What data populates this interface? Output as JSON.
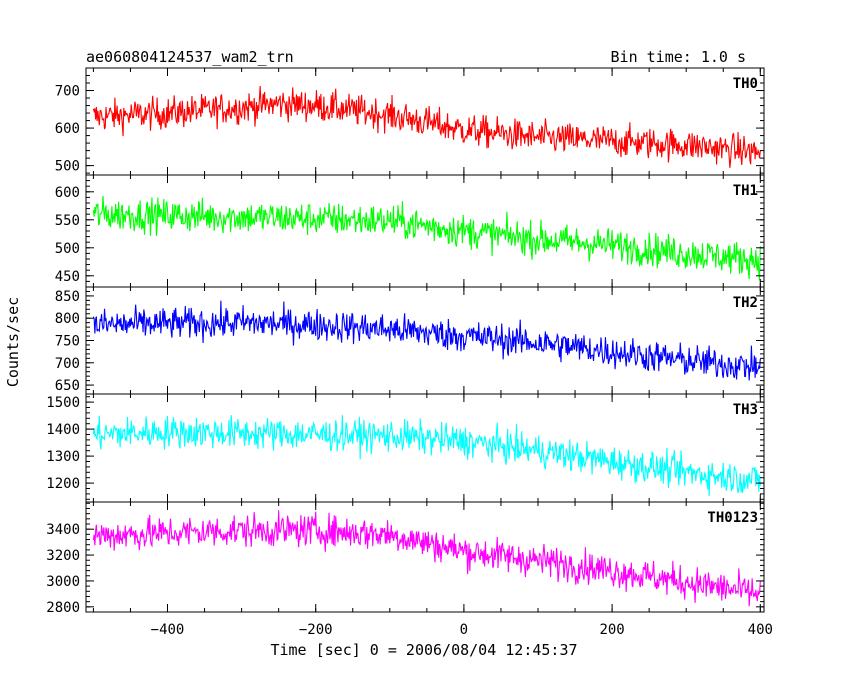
{
  "chart_data": {
    "type": "line",
    "title": "ae060804124537_wam2_trn",
    "subtitle": "Bin time: 1.0 s",
    "xlabel": "Time [sec] 0 = 2006/08/04 12:45:37",
    "ylabel": "Counts/sec",
    "xlim": [
      -510,
      405
    ],
    "x_ticks": [
      -400,
      -200,
      0,
      200,
      400
    ],
    "x_tick_labels": [
      "−400",
      "−200",
      "0",
      "200",
      "400"
    ],
    "bin_time_s": 1.0,
    "legend": "none",
    "grid": false,
    "panels": [
      {
        "name": "TH0",
        "color": "#ff0000",
        "ylim": [
          475,
          760
        ],
        "y_ticks": [
          500,
          600,
          700
        ],
        "series": {
          "name": "TH0",
          "x": [
            -500,
            -400,
            -300,
            -250,
            -200,
            -100,
            0,
            100,
            200,
            300,
            400
          ],
          "values": [
            630,
            640,
            655,
            665,
            660,
            635,
            595,
            575,
            565,
            555,
            535
          ]
        }
      },
      {
        "name": "TH1",
        "color": "#00ff00",
        "ylim": [
          430,
          630
        ],
        "y_ticks": [
          450,
          500,
          550,
          600
        ],
        "series": {
          "name": "TH1",
          "x": [
            -500,
            -400,
            -300,
            -200,
            -100,
            0,
            100,
            200,
            300,
            400
          ],
          "values": [
            560,
            558,
            555,
            552,
            548,
            530,
            515,
            505,
            490,
            478
          ]
        }
      },
      {
        "name": "TH2",
        "color": "#0000ff",
        "ylim": [
          630,
          870
        ],
        "y_ticks": [
          650,
          700,
          750,
          800,
          850
        ],
        "series": {
          "name": "TH2",
          "x": [
            -500,
            -400,
            -300,
            -200,
            -100,
            0,
            100,
            200,
            300,
            400
          ],
          "values": [
            785,
            788,
            790,
            785,
            775,
            760,
            745,
            725,
            705,
            690
          ]
        }
      },
      {
        "name": "TH3",
        "color": "#00ffff",
        "ylim": [
          1130,
          1530
        ],
        "y_ticks": [
          1200,
          1300,
          1400,
          1500
        ],
        "series": {
          "name": "TH3",
          "x": [
            -500,
            -400,
            -300,
            -200,
            -100,
            0,
            100,
            200,
            300,
            400
          ],
          "values": [
            1380,
            1390,
            1385,
            1380,
            1375,
            1355,
            1320,
            1280,
            1240,
            1210
          ]
        }
      },
      {
        "name": "TH0123",
        "color": "#ff00ff",
        "ylim": [
          2760,
          3610
        ],
        "y_ticks": [
          2800,
          3000,
          3200,
          3400
        ],
        "series": {
          "name": "TH0123",
          "x": [
            -500,
            -400,
            -300,
            -200,
            -100,
            0,
            100,
            200,
            300,
            400
          ],
          "values": [
            3350,
            3370,
            3390,
            3390,
            3360,
            3230,
            3160,
            3080,
            2990,
            2900
          ]
        }
      }
    ]
  }
}
